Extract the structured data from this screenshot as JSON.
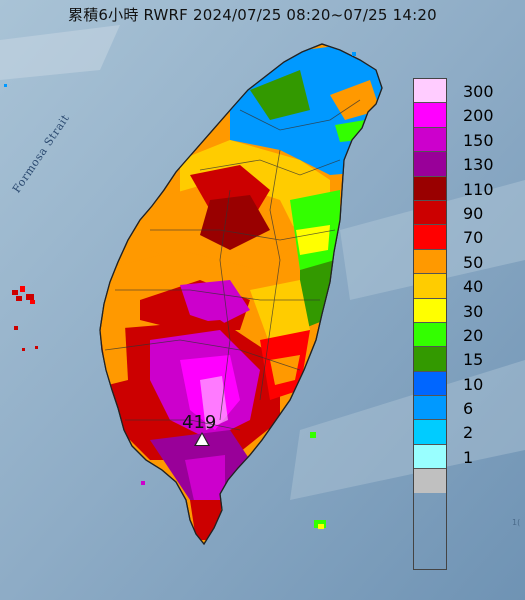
{
  "title": "累積6小時 RWRF 2024/07/25 08:20~07/25 14:20",
  "strait_label": "Formosa Strait",
  "max_value_label": "419",
  "edge_text": "1(",
  "legend": [
    {
      "label": "300",
      "color": "#ffccff"
    },
    {
      "label": "200",
      "color": "#ff00ff"
    },
    {
      "label": "150",
      "color": "#cc00cc"
    },
    {
      "label": "130",
      "color": "#990099"
    },
    {
      "label": "110",
      "color": "#990000"
    },
    {
      "label": "90",
      "color": "#cc0000"
    },
    {
      "label": "70",
      "color": "#ff0000"
    },
    {
      "label": "50",
      "color": "#ff9900"
    },
    {
      "label": "40",
      "color": "#ffcc00"
    },
    {
      "label": "30",
      "color": "#ffff00"
    },
    {
      "label": "20",
      "color": "#33ff00"
    },
    {
      "label": "15",
      "color": "#339900"
    },
    {
      "label": "10",
      "color": "#0066ff"
    },
    {
      "label": "6",
      "color": "#0099ff"
    },
    {
      "label": "2",
      "color": "#00ccff"
    },
    {
      "label": "1",
      "color": "#99ffff"
    },
    {
      "label": "",
      "color": "#c0c0c0"
    }
  ]
}
